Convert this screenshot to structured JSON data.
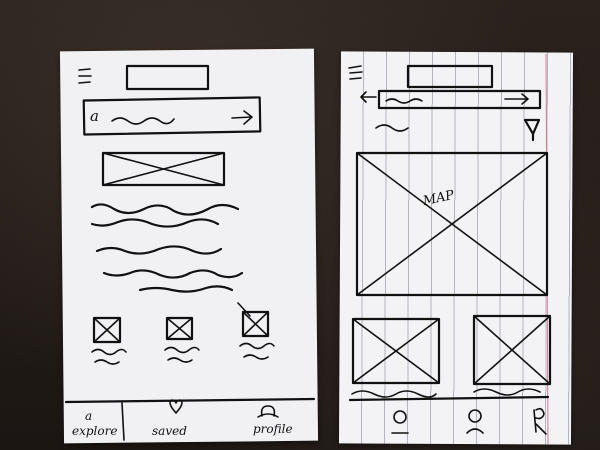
{
  "left_sketch": {
    "search_icon": "a",
    "tabs": [
      {
        "icon": "a",
        "label": "explore"
      },
      {
        "icon": "heart-icon",
        "label": "saved"
      },
      {
        "icon": "person-icon",
        "label": "profile"
      }
    ]
  },
  "right_sketch": {
    "map_label": "MAP"
  },
  "colors": {
    "paper": "#f1f1f3",
    "ink": "#111111",
    "table": "#241d19",
    "margin_line": "#d67b8a",
    "rule_line": "#3c3c6e"
  }
}
